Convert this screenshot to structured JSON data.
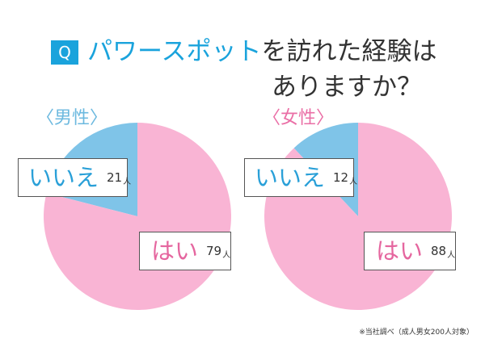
{
  "title": {
    "q_badge": "Q",
    "accent": "パワースポット",
    "line1_rest": "を訪れた経験は",
    "line2": "ありますか？"
  },
  "colors": {
    "accent_blue": "#1aa3dc",
    "no_slice": "#7fc4e8",
    "yes_slice": "#f9b4d4",
    "male_label": "#6cb9df",
    "female_label": "#ea6fa6"
  },
  "footnote": "※当社調べ（成人男女200人対象）",
  "chart_data": [
    {
      "type": "pie",
      "title": "〈男性〉",
      "categories": [
        "いいえ",
        "はい"
      ],
      "values": [
        21,
        79
      ],
      "unit": "人",
      "labels": [
        {
          "text": "いいえ",
          "value": "21",
          "unit": "人"
        },
        {
          "text": "はい",
          "value": "79",
          "unit": "人"
        }
      ]
    },
    {
      "type": "pie",
      "title": "〈女性〉",
      "categories": [
        "いいえ",
        "はい"
      ],
      "values": [
        12,
        88
      ],
      "unit": "人",
      "labels": [
        {
          "text": "いいえ",
          "value": "12",
          "unit": "人"
        },
        {
          "text": "はい",
          "value": "88",
          "unit": "人"
        }
      ]
    }
  ]
}
